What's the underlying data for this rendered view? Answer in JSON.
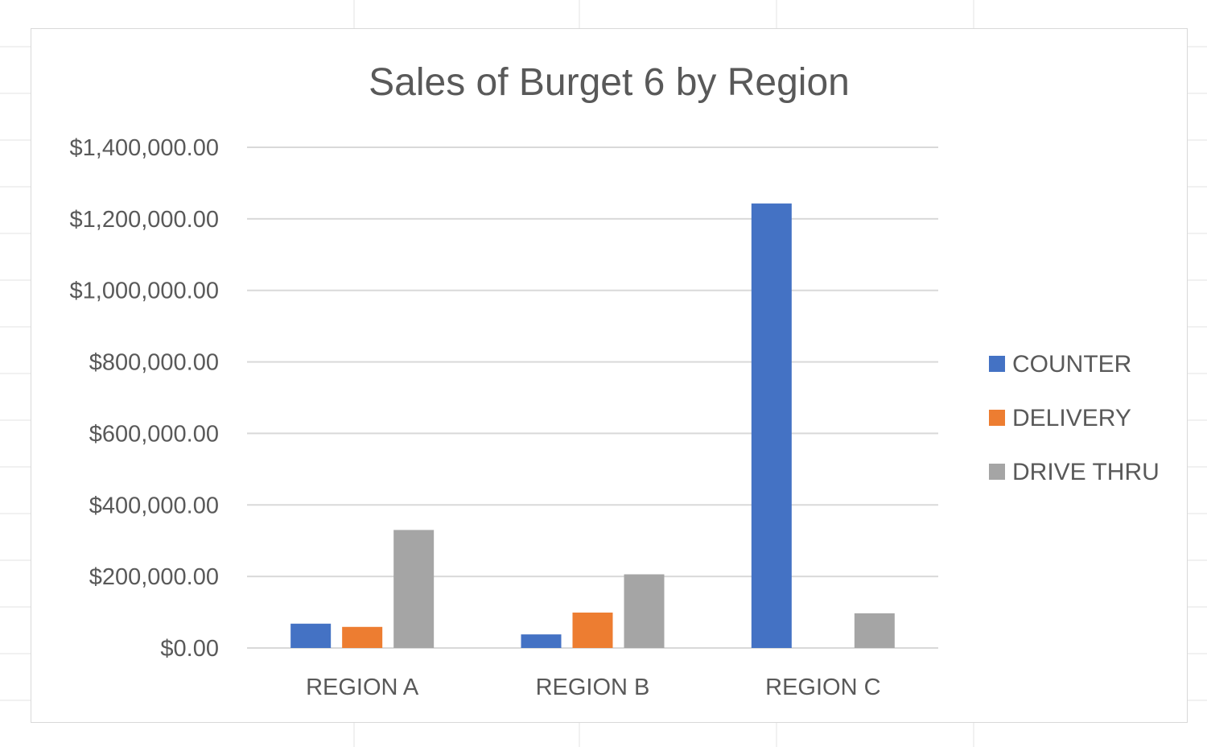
{
  "chart_data": {
    "type": "bar",
    "title": "Sales of Burget 6 by Region",
    "xlabel": "",
    "ylabel": "",
    "categories": [
      "REGION A",
      "REGION B",
      "REGION C"
    ],
    "series": [
      {
        "name": "COUNTER",
        "color": "#4472c4",
        "values": [
          68000,
          38000,
          1243000
        ]
      },
      {
        "name": "DELIVERY",
        "color": "#ed7d31",
        "values": [
          59000,
          99000,
          0
        ]
      },
      {
        "name": "DRIVE THRU",
        "color": "#a5a5a5",
        "values": [
          330000,
          206000,
          97000
        ]
      }
    ],
    "ylim": [
      0,
      1400000
    ],
    "yticks": [
      0,
      200000,
      400000,
      600000,
      800000,
      1000000,
      1200000,
      1400000
    ],
    "ytick_labels": [
      "$0.00",
      "$200,000.00",
      "$400,000.00",
      "$600,000.00",
      "$800,000.00",
      "$1,000,000.00",
      "$1,200,000.00",
      "$1,400,000.00"
    ],
    "grid": true,
    "legend_position": "right"
  }
}
